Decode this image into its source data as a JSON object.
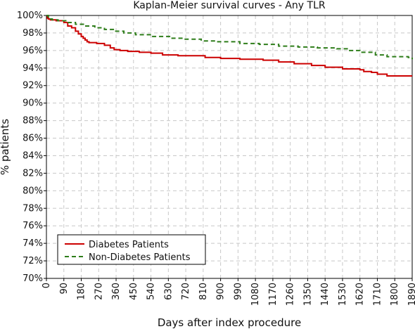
{
  "chart_data": {
    "type": "line",
    "title": "Kaplan-Meier survival curves - Any TLR",
    "xlabel": "Days after index procedure",
    "ylabel": "% patients",
    "xlim": [
      0,
      1890
    ],
    "ylim": [
      70,
      100
    ],
    "xticks": [
      0,
      90,
      180,
      270,
      360,
      450,
      540,
      630,
      720,
      810,
      900,
      990,
      1080,
      1170,
      1260,
      1350,
      1440,
      1530,
      1620,
      1710,
      1800,
      1890
    ],
    "yticks": [
      70,
      72,
      74,
      76,
      78,
      80,
      82,
      84,
      86,
      88,
      90,
      92,
      94,
      96,
      98,
      100
    ],
    "ytick_labels": [
      "70%",
      "72%",
      "74%",
      "76%",
      "78%",
      "80%",
      "82%",
      "84%",
      "86%",
      "88%",
      "90%",
      "92%",
      "94%",
      "96%",
      "98%",
      "100%"
    ],
    "grid": true,
    "legend_position": "bottom-left",
    "series": [
      {
        "name": "Diabetes Patients",
        "color": "#cc0000",
        "style": "solid",
        "step": true,
        "x": [
          0,
          5,
          10,
          20,
          50,
          90,
          110,
          130,
          150,
          165,
          180,
          190,
          200,
          210,
          220,
          260,
          300,
          330,
          350,
          380,
          420,
          480,
          540,
          600,
          680,
          820,
          900,
          1000,
          1120,
          1200,
          1280,
          1370,
          1440,
          1530,
          1620,
          1640,
          1680,
          1710,
          1760,
          1890
        ],
        "y": [
          100,
          99.7,
          99.6,
          99.5,
          99.4,
          99.2,
          98.8,
          98.6,
          98.2,
          97.9,
          97.6,
          97.4,
          97.2,
          97.0,
          96.9,
          96.8,
          96.6,
          96.3,
          96.1,
          96.0,
          95.9,
          95.8,
          95.7,
          95.5,
          95.4,
          95.2,
          95.1,
          95.0,
          94.9,
          94.7,
          94.5,
          94.3,
          94.1,
          93.9,
          93.8,
          93.6,
          93.5,
          93.3,
          93.1,
          93.1
        ]
      },
      {
        "name": "Non-Diabetes Patients",
        "color": "#2e7d1a",
        "style": "dashed",
        "step": true,
        "x": [
          0,
          10,
          30,
          60,
          100,
          150,
          200,
          250,
          300,
          350,
          400,
          460,
          540,
          640,
          700,
          800,
          880,
          1000,
          1100,
          1200,
          1300,
          1400,
          1500,
          1560,
          1620,
          1700,
          1760,
          1870,
          1890
        ],
        "y": [
          100,
          99.6,
          99.5,
          99.4,
          99.2,
          99.0,
          98.8,
          98.6,
          98.4,
          98.2,
          98.0,
          97.8,
          97.6,
          97.4,
          97.3,
          97.1,
          97.0,
          96.8,
          96.7,
          96.5,
          96.4,
          96.3,
          96.2,
          96.0,
          95.8,
          95.5,
          95.3,
          95.2,
          95.0
        ]
      }
    ]
  }
}
